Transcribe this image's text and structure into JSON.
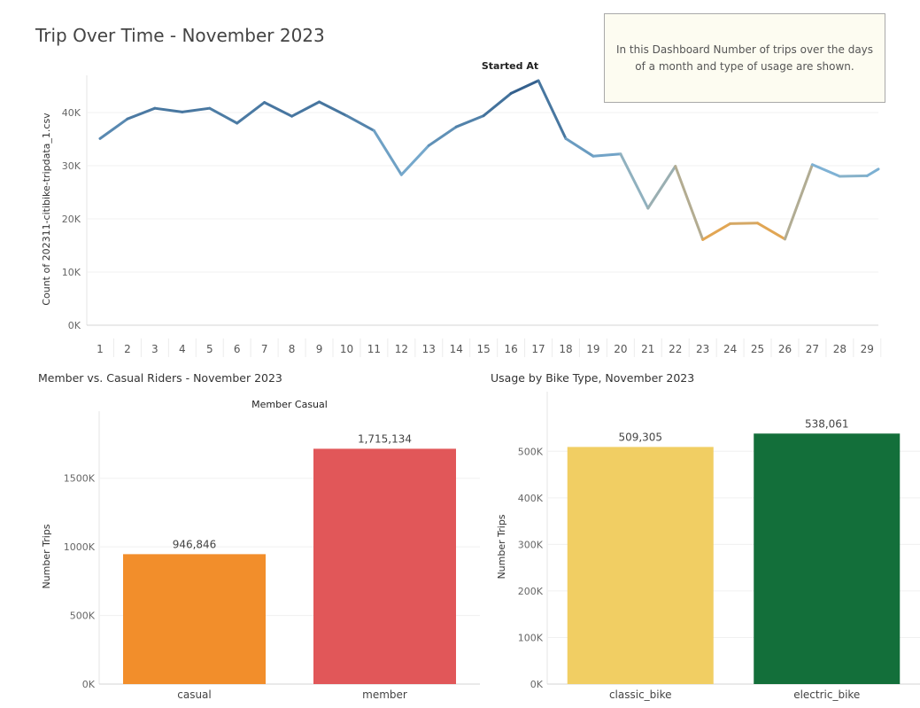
{
  "dashboard": {
    "title": "Trip Over Time - November 2023",
    "note": "In this Dashboard Number of trips over the days of a month and type of usage are shown."
  },
  "chart_data": [
    {
      "id": "trips-over-time",
      "type": "line",
      "title": "Started At",
      "ylabel": "Count of 202311-citibike-tripdata_1.csv",
      "ylim": [
        0,
        47000
      ],
      "yticks": [
        0,
        10000,
        20000,
        30000,
        40000
      ],
      "ytick_labels": [
        "0K",
        "10K",
        "20K",
        "30K",
        "40K"
      ],
      "x": [
        1,
        2,
        3,
        4,
        5,
        6,
        7,
        8,
        9,
        10,
        11,
        12,
        13,
        14,
        15,
        16,
        17,
        18,
        19,
        20,
        21,
        22,
        23,
        24,
        25,
        26,
        27,
        28,
        29,
        30
      ],
      "x_tick_labels": [
        "1",
        "2",
        "3",
        "4",
        "5",
        "6",
        "7",
        "8",
        "9",
        "10",
        "11",
        "12",
        "13",
        "14",
        "15",
        "16",
        "17",
        "18",
        "19",
        "20",
        "21",
        "22",
        "23",
        "24",
        "25",
        "26",
        "27",
        "28",
        "29"
      ],
      "values": [
        35100,
        38800,
        40800,
        40100,
        40800,
        38000,
        41900,
        39300,
        42000,
        39400,
        36600,
        28300,
        33800,
        37300,
        39400,
        43600,
        46000,
        35100,
        31800,
        32200,
        22000,
        29900,
        16100,
        19100,
        19200,
        16200,
        30200,
        28000,
        28100,
        31200
      ],
      "color_scale": {
        "low": "#f0a441",
        "mid": "#7fb3d5",
        "high": "#2e5a87"
      },
      "grid": true
    },
    {
      "id": "member-casual",
      "type": "bar",
      "panel_title": "Member vs. Casual Riders - November 2023",
      "title": "Member Casual",
      "ylabel": "Number Trips",
      "categories": [
        "casual",
        "member"
      ],
      "values": [
        946846,
        1715134
      ],
      "value_labels": [
        "946,846",
        "1,715,134"
      ],
      "colors": [
        "#f28e2b",
        "#e15759"
      ],
      "ylim": [
        0,
        1860000
      ],
      "yticks": [
        0,
        500000,
        1000000,
        1500000
      ],
      "ytick_labels": [
        "0K",
        "500K",
        "1000K",
        "1500K"
      ],
      "grid": true
    },
    {
      "id": "bike-type",
      "type": "bar",
      "panel_title": "Usage by Bike Type, November 2023",
      "ylabel": "Number Trips",
      "categories": [
        "classic_bike",
        "electric_bike"
      ],
      "values": [
        509305,
        538061
      ],
      "value_labels": [
        "509,305",
        "538,061"
      ],
      "colors": [
        "#f1ce63",
        "#136f3a"
      ],
      "ylim": [
        0,
        590000
      ],
      "yticks": [
        0,
        100000,
        200000,
        300000,
        400000,
        500000
      ],
      "ytick_labels": [
        "0K",
        "100K",
        "200K",
        "300K",
        "400K",
        "500K"
      ],
      "grid": true
    }
  ]
}
